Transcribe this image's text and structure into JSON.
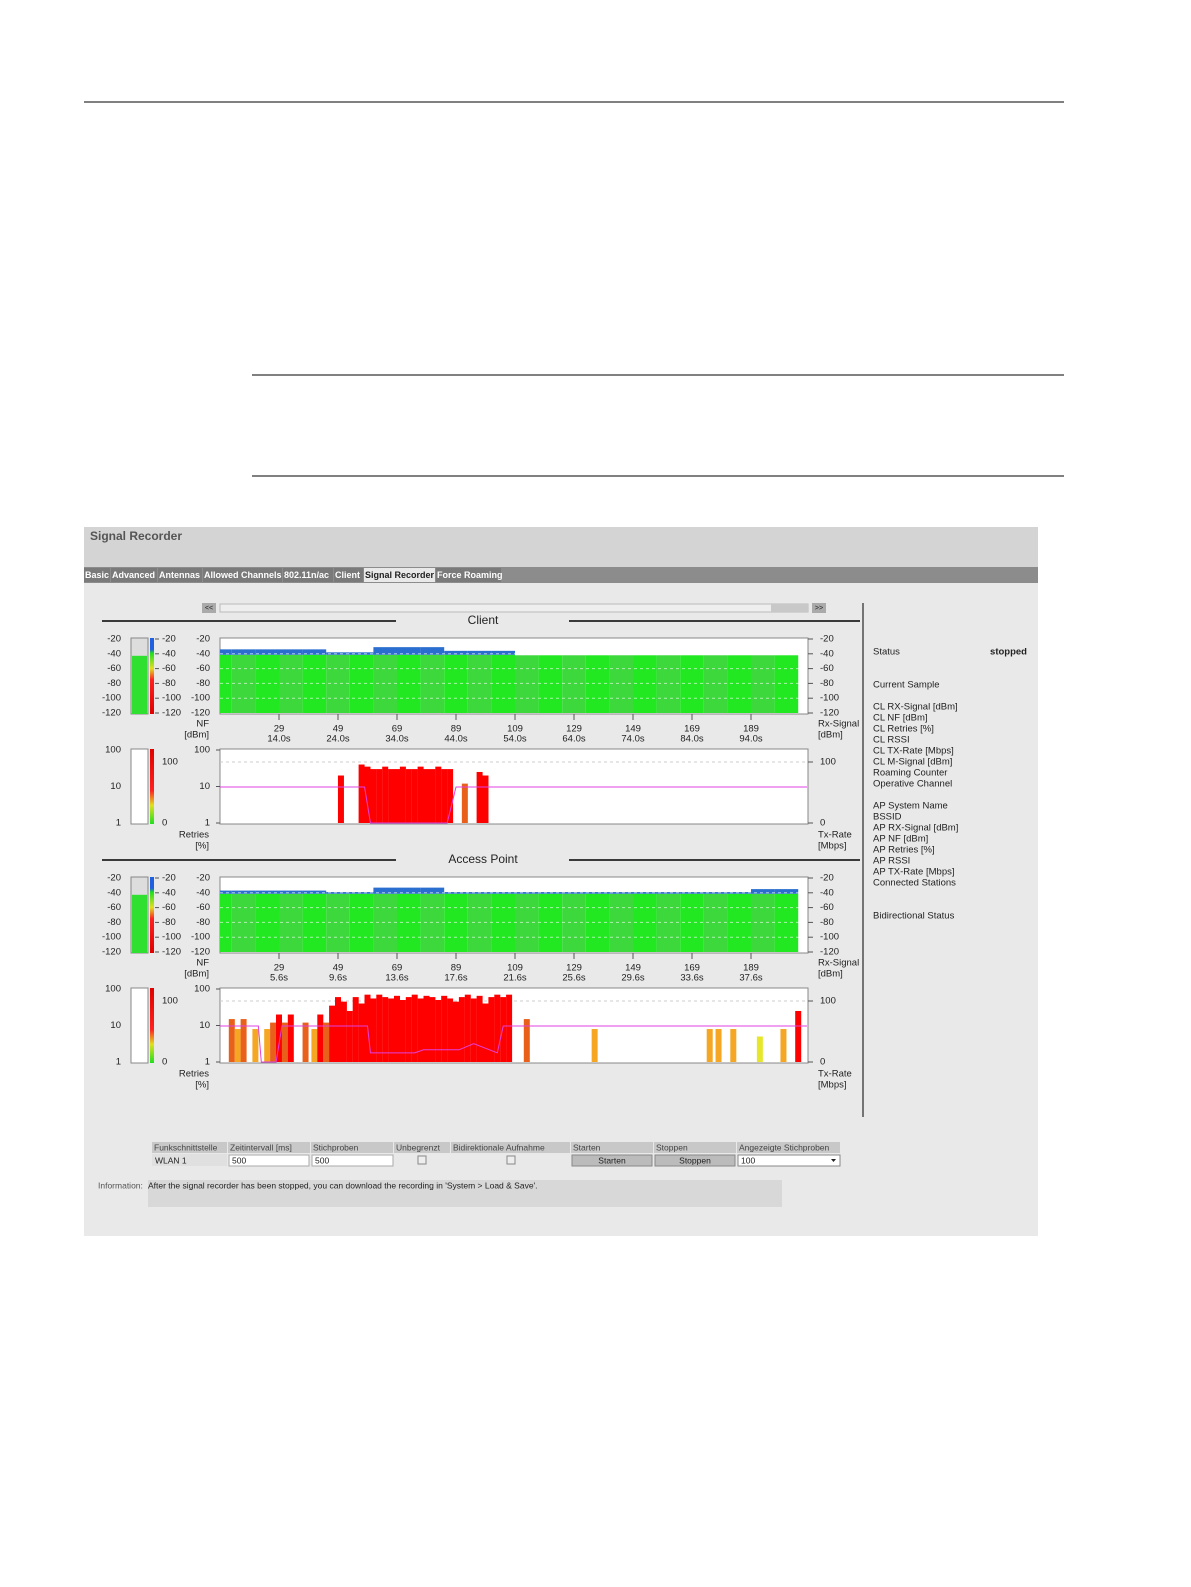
{
  "app": {
    "title": "Signal Recorder",
    "tabs": [
      "Basic",
      "Advanced",
      "Antennas",
      "Allowed Channels",
      "802.11n/ac",
      "Client",
      "Signal Recorder",
      "Force Roaming"
    ],
    "scroll_left": "<<",
    "scroll_right": ">>",
    "scales": {
      "signal_ticks": [
        -20,
        -40,
        -60,
        -80,
        -100,
        -120
      ],
      "retry_ticks": [
        100,
        10,
        1
      ],
      "txrate_ticks": [
        100,
        0
      ],
      "nf_label": [
        "NF",
        "[dBm]"
      ],
      "rx_label": [
        "Rx-Signal",
        "[dBm]"
      ],
      "retries_label": [
        "Retries",
        "[%]"
      ],
      "txrate_label": [
        "Tx-Rate",
        "[Mbps]"
      ]
    },
    "client": {
      "title": "Client",
      "x_samples": [
        29,
        49,
        69,
        89,
        109,
        129,
        149,
        169,
        189
      ],
      "x_times": [
        "14.0s",
        "24.0s",
        "34.0s",
        "44.0s",
        "54.0s",
        "64.0s",
        "74.0s",
        "84.0s",
        "94.0s"
      ],
      "signal": {
        "samples": [
          9,
          17,
          25,
          33,
          41,
          49,
          57,
          65,
          73,
          81,
          89,
          97,
          105,
          113,
          121,
          129,
          137,
          145,
          153,
          161,
          169,
          177,
          185,
          193,
          201
        ],
        "values": [
          -34,
          -34,
          -34,
          -34,
          -34,
          -38,
          -38,
          -31,
          -31,
          -31,
          -36,
          -36,
          -36,
          -42,
          -42,
          -42,
          -42,
          -42,
          -42,
          -42,
          -42,
          -42,
          -42,
          -42,
          -42
        ]
      },
      "retries": {
        "samples": [
          50,
          57,
          59,
          61,
          63,
          65,
          67,
          69,
          71,
          73,
          75,
          77,
          79,
          81,
          83,
          85,
          87,
          92,
          97,
          99
        ],
        "values": [
          20,
          40,
          35,
          30,
          30,
          35,
          30,
          30,
          35,
          30,
          30,
          35,
          30,
          30,
          35,
          30,
          30,
          12,
          25,
          20
        ]
      },
      "txrate": {
        "samples": [
          9,
          58,
          60,
          86,
          89,
          208
        ],
        "values": [
          59,
          59,
          0,
          0,
          59,
          59
        ]
      }
    },
    "access_point": {
      "title": "Access Point",
      "x_samples": [
        29,
        49,
        69,
        89,
        109,
        129,
        149,
        169,
        189
      ],
      "x_times": [
        "5.6s",
        "9.6s",
        "13.6s",
        "17.6s",
        "21.6s",
        "25.6s",
        "29.6s",
        "33.6s",
        "37.6s"
      ],
      "signal": {
        "samples": [
          9,
          17,
          25,
          33,
          41,
          49,
          57,
          65,
          73,
          81,
          89,
          97,
          105,
          113,
          121,
          129,
          137,
          145,
          153,
          161,
          169,
          177,
          185,
          193,
          201
        ],
        "values": [
          -37,
          -37,
          -37,
          -37,
          -37,
          -39,
          -39,
          -33,
          -33,
          -33,
          -39,
          -39,
          -39,
          -39,
          -39,
          -39,
          -39,
          -39,
          -39,
          -39,
          -39,
          -39,
          -39,
          -35,
          -35
        ]
      },
      "retries": {
        "samples": [
          13,
          15,
          17,
          21,
          25,
          27,
          29,
          31,
          33,
          38,
          41,
          43,
          45,
          47,
          49,
          51,
          53,
          55,
          57,
          59,
          61,
          63,
          65,
          67,
          69,
          71,
          73,
          75,
          77,
          79,
          81,
          83,
          85,
          87,
          89,
          91,
          93,
          95,
          97,
          99,
          101,
          103,
          105,
          107,
          113,
          136,
          175,
          178,
          183,
          192,
          200,
          205
        ],
        "values": [
          15,
          8,
          15,
          8,
          8,
          12,
          20,
          12,
          20,
          12,
          8,
          20,
          12,
          35,
          60,
          45,
          25,
          60,
          40,
          70,
          55,
          70,
          60,
          55,
          65,
          50,
          60,
          70,
          55,
          65,
          60,
          50,
          65,
          55,
          45,
          60,
          70,
          55,
          65,
          40,
          60,
          70,
          60,
          70,
          15,
          8,
          8,
          8,
          8,
          5,
          8,
          25
        ]
      },
      "txrate": {
        "samples": [
          9,
          22,
          23,
          28,
          30,
          59,
          60,
          75,
          78,
          90,
          95,
          103,
          105,
          108,
          208
        ],
        "values": [
          59,
          59,
          0,
          0,
          59,
          59,
          15,
          15,
          20,
          20,
          30,
          15,
          59,
          59,
          59
        ]
      }
    },
    "status": {
      "status_label": "Status",
      "status_value": "stopped",
      "current_sample": "Current Sample",
      "client_fields": [
        "CL RX-Signal [dBm]",
        "CL NF [dBm]",
        "CL Retries [%]",
        "CL RSSI",
        "CL TX-Rate [Mbps]",
        "CL M-Signal [dBm]",
        "Roaming Counter",
        "Operative Channel"
      ],
      "ap_fields": [
        "AP System Name",
        "BSSID",
        "AP RX-Signal [dBm]",
        "AP NF [dBm]",
        "AP Retries [%]",
        "AP RSSI",
        "AP TX-Rate [Mbps]",
        "Connected Stations"
      ],
      "bidirectional": "Bidirectional Status"
    },
    "table": {
      "headers": [
        "Funkschnittstelle",
        "Zeitintervall [ms]",
        "Stichproben",
        "Unbegrenzt",
        "Bidirektionale Aufnahme",
        "Starten",
        "Stoppen",
        "Angezeigte Stichproben"
      ],
      "interface": "WLAN 1",
      "interval": "500",
      "samples": "500",
      "start_button": "Starten",
      "stop_button": "Stoppen",
      "shown_samples": "100"
    },
    "info": {
      "label": "Information:",
      "message": "After the signal recorder has been stopped, you can download the recording in 'System > Load & Save'."
    }
  }
}
